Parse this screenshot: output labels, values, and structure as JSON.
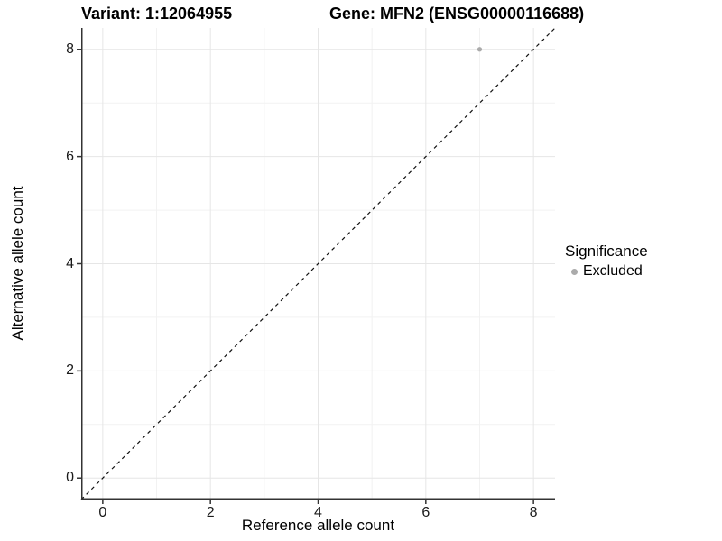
{
  "header": {
    "variant_title": "Variant: 1:12064955",
    "gene_title": "Gene: MFN2 (ENSG00000116688)"
  },
  "legend": {
    "title": "Significance",
    "items": [
      {
        "label": "Excluded",
        "color": "#ababab"
      }
    ]
  },
  "chart_data": {
    "type": "scatter",
    "title": "Variant: 1:12064955 | Gene: MFN2 (ENSG00000116688)",
    "xlabel": "Reference allele count",
    "ylabel": "Alternative allele count",
    "xlim": [
      -0.4,
      8.4
    ],
    "ylim": [
      -0.4,
      8.4
    ],
    "x_ticks": [
      0,
      2,
      4,
      6,
      8
    ],
    "y_ticks": [
      0,
      2,
      4,
      6,
      8
    ],
    "x_minor_ticks": [
      1,
      3,
      5,
      7
    ],
    "y_minor_ticks": [
      1,
      3,
      5,
      7
    ],
    "grid": "major+minor",
    "legend_position": "right",
    "series": [
      {
        "name": "Excluded",
        "color": "#ababab",
        "marker": "circle",
        "marker_radius": 2.6,
        "points": [
          {
            "x": 7,
            "y": 8
          }
        ]
      }
    ],
    "reference_line": {
      "kind": "identity",
      "slope": 1,
      "intercept": 0,
      "linetype": "dashed",
      "color": "#111111"
    }
  },
  "colors": {
    "background": "#ffffff",
    "grid_major": "#e6e6e6",
    "grid_minor": "#f2f2f2",
    "axis_line": "#333333",
    "tick_text": "#1a1a1a"
  }
}
